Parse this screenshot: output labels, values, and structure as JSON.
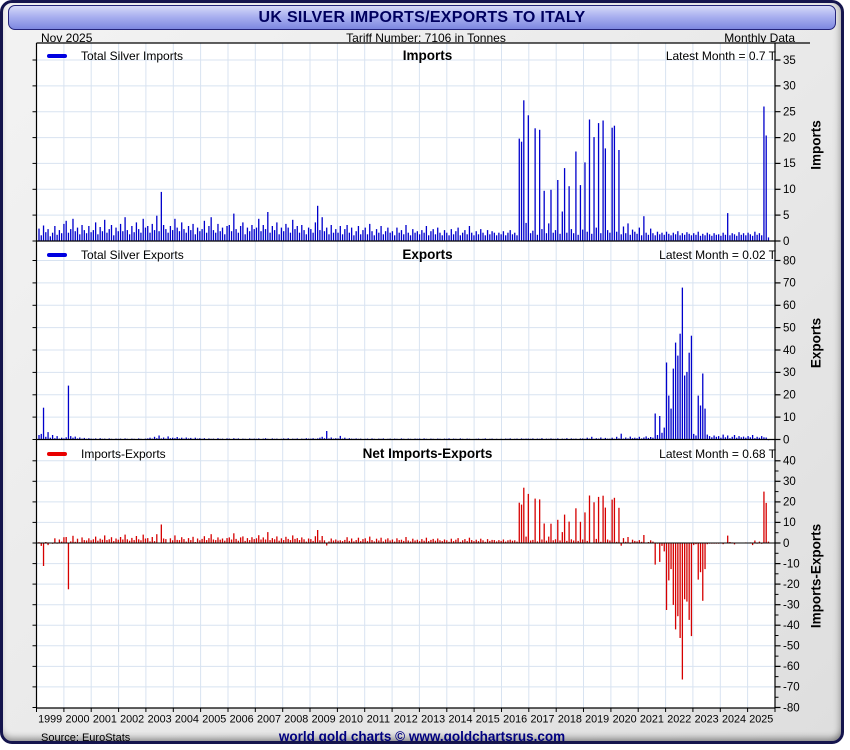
{
  "window": {
    "title": "UK SILVER IMPORTS/EXPORTS TO ITALY"
  },
  "header": {
    "date": "Nov  2025",
    "tariff": "Tariff Number: 7106 in Tonnes",
    "frequency": "Monthly Data"
  },
  "footer": {
    "source": "Source: EuroStats",
    "brand": "world gold charts © www.goldchartsrus.com"
  },
  "colors": {
    "bar_blue": "#0000cc",
    "swatch_blue": "#0000e0",
    "bar_red": "#d60000",
    "swatch_red": "#e80000",
    "grid": "#d8e3f1",
    "axis": "#000000",
    "navy": "#000080"
  },
  "chart_data": {
    "type": "bar",
    "frequency": "monthly",
    "unit": "Tonnes (T)",
    "title": "UK SILVER IMPORTS/EXPORTS TO ITALY",
    "x_start_year": 1999,
    "x_end_year": 2025,
    "years": [
      1999,
      2000,
      2001,
      2002,
      2003,
      2004,
      2005,
      2006,
      2007,
      2008,
      2009,
      2010,
      2011,
      2012,
      2013,
      2014,
      2015,
      2016,
      2017,
      2018,
      2019,
      2020,
      2021,
      2022,
      2023,
      2024,
      2025
    ],
    "panels": [
      {
        "id": "imports",
        "legend": "Total Silver Imports",
        "title": "Imports",
        "latest": "Latest Month = 0.7 T",
        "axis_label": "Imports",
        "ylim": [
          0,
          38
        ],
        "ticks": [
          0,
          5,
          10,
          15,
          20,
          25,
          30,
          35
        ],
        "series": "imports",
        "color": "blue"
      },
      {
        "id": "exports",
        "legend": "Total Silver Exports",
        "title": "Exports",
        "latest": "Latest Month = 0.02 T",
        "axis_label": "Exports",
        "ylim": [
          0,
          88
        ],
        "ticks": [
          0,
          10,
          20,
          30,
          40,
          50,
          60,
          70,
          80
        ],
        "series": "exports",
        "color": "blue"
      },
      {
        "id": "net",
        "legend": "Imports-Exports",
        "title": "Net Imports-Exports",
        "latest": "Latest Month = 0.68 T",
        "axis_label": "Imports-Exports",
        "ylim": [
          -80,
          41
        ],
        "ticks": [
          40,
          30,
          20,
          10,
          0,
          -10,
          -20,
          -30,
          -40,
          -50,
          -60,
          -70,
          -80
        ],
        "minor_tick_step": 5,
        "series": "net",
        "net_formula": "imports - exports",
        "color": "red"
      }
    ],
    "series": {
      "imports": [
        2.4,
        1.1,
        3.0,
        1.7,
        2.3,
        0.9,
        1.6,
        2.9,
        1.2,
        2.1,
        1.5,
        3.3,
        3.9,
        1.6,
        2.3,
        4.3,
        1.9,
        2.6,
        1.3,
        3.1,
        2.1,
        1.5,
        2.9,
        1.7,
        2.1,
        3.6,
        1.3,
        2.7,
        1.9,
        4.1,
        1.6,
        2.3,
        3.1,
        1.1,
        2.6,
        1.9,
        3.3,
        1.9,
        4.6,
        2.1,
        1.3,
        2.9,
        1.7,
        3.6,
        2.3,
        1.6,
        4.3,
        2.6,
        2.9,
        1.6,
        3.3,
        2.1,
        4.9,
        1.9,
        9.5,
        3.1,
        2.3,
        1.6,
        2.9,
        2.1,
        4.3,
        2.6,
        1.9,
        3.6,
        2.3,
        1.6,
        2.9,
        2.1,
        3.3,
        1.3,
        2.6,
        1.9,
        2.3,
        3.9,
        1.6,
        2.9,
        4.6,
        2.1,
        1.6,
        3.3,
        1.9,
        2.6,
        1.3,
        2.9,
        3.1,
        1.9,
        5.3,
        2.3,
        1.6,
        2.9,
        3.6,
        1.3,
        2.6,
        1.9,
        3.1,
        2.3,
        2.6,
        4.3,
        1.9,
        3.1,
        2.3,
        5.6,
        1.6,
        2.9,
        2.1,
        3.6,
        1.3,
        2.6,
        1.9,
        3.3,
        2.6,
        1.6,
        4.1,
        2.3,
        2.9,
        1.6,
        3.1,
        2.1,
        1.3,
        2.6,
        2.3,
        1.6,
        3.6,
        6.8,
        2.1,
        4.6,
        1.9,
        2.6,
        1.3,
        3.1,
        1.6,
        2.3,
        1.6,
        2.9,
        1.3,
        2.3,
        3.1,
        1.6,
        2.6,
        1.1,
        1.9,
        2.9,
        1.3,
        2.1,
        2.6,
        1.3,
        3.3,
        1.9,
        1.1,
        2.3,
        1.6,
        2.9,
        1.3,
        1.9,
        2.6,
        1.6,
        1.9,
        1.1,
        2.6,
        1.6,
        2.1,
        1.3,
        3.1,
        1.6,
        1.1,
        2.3,
        1.6,
        1.9,
        1.3,
        2.1,
        1.6,
        2.9,
        1.1,
        1.9,
        2.3,
        1.3,
        2.6,
        1.6,
        1.1,
        2.1,
        1.6,
        1.1,
        2.3,
        1.3,
        1.9,
        2.6,
        1.1,
        1.6,
        2.1,
        1.3,
        2.9,
        1.6,
        1.1,
        1.9,
        1.3,
        2.3,
        1.6,
        1.1,
        2.1,
        1.3,
        1.9,
        1.6,
        1.1,
        1.6,
        1.3,
        1.9,
        1.1,
        1.6,
        2.1,
        1.3,
        1.6,
        1.1,
        19.8,
        19.2,
        27.2,
        3.5,
        24.3,
        1.5,
        2.0,
        21.8,
        1.2,
        21.5,
        2.3,
        9.7,
        1.5,
        3.4,
        9.9,
        1.6,
        2.1,
        11.8,
        1.4,
        5.7,
        14.1,
        1.6,
        10.6,
        2.3,
        1.5,
        17.3,
        1.2,
        10.8,
        2.2,
        15.2,
        1.8,
        23.5,
        1.4,
        20.1,
        2.6,
        22.8,
        1.5,
        23.3,
        17.9,
        2.1,
        1.6,
        21.9,
        22.3,
        1.8,
        17.6,
        1.3,
        2.8,
        1.5,
        3.4,
        1.2,
        2.2,
        1.8,
        1.4,
        2.6,
        1.1,
        4.8,
        1.6,
        1.2,
        2.4,
        1.5,
        1.1,
        1.8,
        1.3,
        1.6,
        1.2,
        1.8,
        1.4,
        1.1,
        1.6,
        1.3,
        1.9,
        1.1,
        1.5,
        1.2,
        1.7,
        1.4,
        1.1,
        1.5,
        1.2,
        1.8,
        1.0,
        1.4,
        1.1,
        1.6,
        1.3,
        1.0,
        1.5,
        1.2,
        1.3,
        1.0,
        1.6,
        1.2,
        5.4,
        1.1,
        1.5,
        1.3,
        1.0,
        1.7,
        1.2,
        1.5,
        1.1,
        1.6,
        1.3,
        1.0,
        1.8,
        1.2,
        1.5,
        1.1,
        26.0,
        20.4,
        0.7
      ],
      "exports": [
        2.0,
        2.5,
        14.2,
        1.2,
        3.3,
        0.8,
        2.0,
        0.6,
        1.5,
        0.4,
        0.8,
        0.5,
        1.0,
        24.1,
        1.5,
        0.8,
        1.3,
        0.5,
        0.9,
        0.4,
        0.7,
        0.3,
        0.6,
        0.4,
        0.3,
        0.5,
        0.2,
        0.6,
        0.3,
        0.4,
        0.2,
        0.5,
        0.3,
        0.2,
        0.4,
        0.3,
        0.4,
        0.2,
        0.5,
        0.3,
        0.2,
        0.4,
        0.3,
        0.2,
        0.5,
        0.3,
        0.2,
        0.4,
        0.5,
        0.8,
        0.4,
        1.2,
        0.6,
        1.8,
        0.5,
        0.9,
        0.4,
        1.4,
        0.6,
        0.8,
        0.6,
        1.1,
        0.5,
        0.8,
        0.4,
        0.9,
        0.5,
        0.7,
        0.3,
        0.8,
        0.4,
        0.6,
        0.3,
        0.6,
        0.2,
        0.5,
        0.3,
        0.4,
        0.2,
        0.6,
        0.3,
        0.4,
        0.2,
        0.5,
        0.4,
        0.2,
        0.6,
        0.3,
        0.5,
        0.2,
        0.4,
        0.3,
        0.2,
        0.5,
        0.3,
        0.4,
        0.3,
        0.5,
        0.2,
        0.4,
        0.6,
        0.3,
        0.2,
        0.5,
        0.3,
        0.4,
        0.2,
        0.3,
        0.5,
        0.3,
        0.6,
        0.2,
        0.4,
        0.3,
        0.5,
        0.2,
        0.4,
        0.3,
        0.6,
        0.4,
        0.4,
        0.6,
        0.3,
        0.5,
        0.8,
        1.2,
        0.6,
        3.8,
        0.5,
        0.9,
        0.4,
        0.6,
        0.5,
        1.6,
        0.4,
        0.8,
        0.3,
        0.6,
        0.4,
        0.3,
        0.5,
        0.3,
        0.4,
        0.2,
        0.3,
        0.4,
        0.2,
        0.5,
        0.3,
        0.2,
        0.4,
        0.3,
        0.5,
        0.2,
        0.3,
        0.4,
        0.2,
        0.4,
        0.3,
        0.2,
        0.5,
        0.3,
        0.2,
        0.4,
        0.3,
        0.2,
        0.4,
        0.3,
        0.4,
        0.2,
        0.5,
        0.3,
        0.2,
        0.4,
        0.3,
        0.2,
        0.4,
        0.3,
        0.2,
        0.4,
        0.3,
        0.5,
        0.2,
        0.4,
        0.3,
        0.2,
        0.5,
        0.3,
        0.2,
        0.4,
        0.3,
        0.2,
        0.2,
        0.3,
        0.4,
        0.2,
        0.3,
        0.5,
        0.2,
        0.3,
        0.4,
        0.2,
        0.3,
        0.2,
        0.3,
        0.2,
        0.4,
        0.3,
        0.5,
        0.2,
        0.3,
        0.4,
        0.2,
        0.5,
        0.3,
        0.4,
        0.4,
        0.3,
        0.5,
        0.2,
        0.4,
        0.3,
        0.6,
        0.2,
        0.4,
        0.3,
        0.5,
        0.3,
        0.3,
        0.5,
        0.2,
        0.4,
        0.3,
        0.6,
        0.2,
        0.5,
        0.3,
        0.4,
        0.2,
        0.5,
        0.5,
        0.3,
        0.8,
        0.4,
        1.2,
        0.3,
        0.6,
        0.4,
        0.9,
        0.3,
        0.7,
        0.4,
        0.4,
        0.8,
        0.3,
        1.2,
        0.5,
        2.6,
        0.4,
        0.9,
        0.5,
        1.3,
        0.6,
        0.8,
        0.6,
        1.2,
        0.5,
        0.9,
        1.4,
        0.7,
        1.1,
        0.8,
        11.6,
        2.0,
        10.5,
        3.0,
        5.3,
        34.4,
        19.6,
        13.8,
        31.7,
        43.3,
        37.5,
        47.3,
        67.9,
        28.6,
        30.2,
        38.8,
        46.4,
        2.5,
        1.8,
        19.6,
        15.2,
        29.5,
        13.8,
        2.2,
        1.5,
        1.0,
        1.8,
        1.2,
        1.5,
        0.8,
        2.2,
        1.0,
        1.8,
        0.6,
        1.2,
        2.0,
        0.8,
        1.5,
        1.0,
        1.3,
        0.8,
        1.5,
        1.0,
        2.0,
        0.6,
        1.2,
        0.8,
        1.5,
        1.0,
        0.9,
        0.02
      ]
    }
  }
}
